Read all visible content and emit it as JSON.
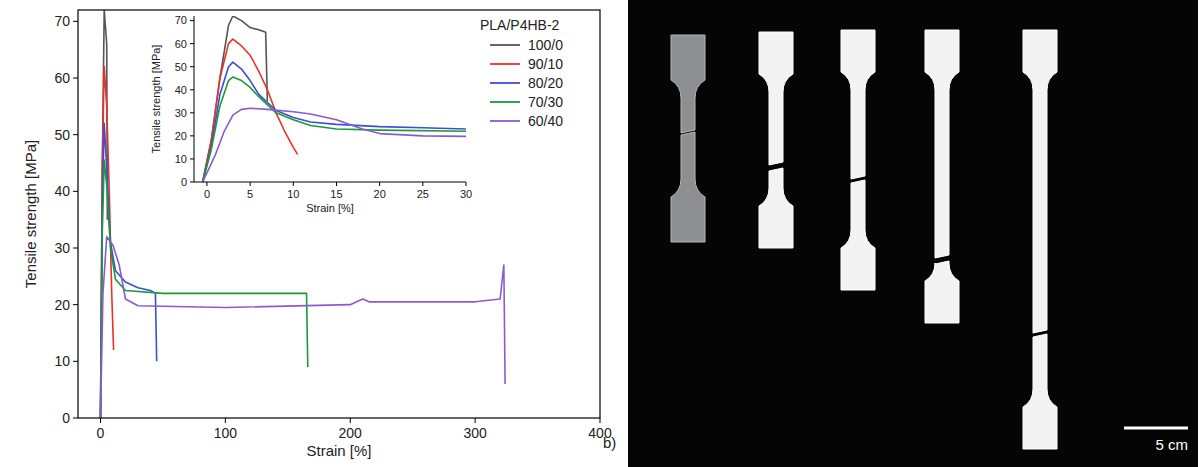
{
  "chart_data": [
    {
      "type": "line",
      "x_label": "Strain [%]",
      "y_label": "Tensile strength [MPa]",
      "legend_title": "PLA/P4HB-2",
      "legend": "upper right",
      "xlim": [
        -18,
        400
      ],
      "ylim": [
        0,
        72
      ],
      "xticks": [
        0,
        100,
        200,
        300,
        400
      ],
      "yticks": [
        0,
        10,
        20,
        30,
        40,
        50,
        60,
        70
      ],
      "series": [
        {
          "name": "100/0",
          "color": "#555555",
          "x": [
            0,
            1.5,
            3,
            4,
            5,
            5.5
          ],
          "values": [
            0,
            45,
            72,
            69,
            66,
            35
          ]
        },
        {
          "name": "90/10",
          "color": "#e8322a",
          "x": [
            0,
            1.5,
            3,
            5,
            7,
            9,
            10.5
          ],
          "values": [
            0,
            45,
            62,
            55,
            40,
            22,
            12
          ]
        },
        {
          "name": "80/20",
          "color": "#3a4fd6",
          "x": [
            0,
            1.5,
            3,
            5,
            8,
            12,
            20,
            30,
            40,
            44,
            45
          ],
          "values": [
            0,
            38,
            52,
            44,
            31,
            26,
            24,
            23,
            22.5,
            22,
            10
          ]
        },
        {
          "name": "70/30",
          "color": "#1a9a3a",
          "x": [
            0,
            1.5,
            3,
            5,
            8,
            12,
            20,
            50,
            100,
            165,
            166
          ],
          "values": [
            0,
            33,
            45.5,
            41,
            30,
            24.5,
            22.5,
            22,
            22,
            22,
            9
          ]
        },
        {
          "name": "60/40",
          "color": "#8a5bd0",
          "x": [
            0,
            2,
            5,
            10,
            15,
            20,
            30,
            100,
            200,
            210,
            215,
            250,
            300,
            320,
            323,
            324
          ],
          "values": [
            0,
            22,
            32,
            30.5,
            27,
            21,
            19.8,
            19.5,
            20,
            21,
            20.5,
            20.5,
            20.5,
            21,
            27,
            6
          ]
        }
      ]
    },
    {
      "type": "line",
      "x_label": "Strain [%]",
      "y_label": "Tensile strength [MPa]",
      "xlim": [
        -1.5,
        30
      ],
      "ylim": [
        0,
        72
      ],
      "xticks": [
        0,
        5,
        10,
        15,
        20,
        25,
        30
      ],
      "yticks": [
        0,
        10,
        20,
        30,
        40,
        50,
        60,
        70
      ],
      "series": [
        {
          "color": "#555555",
          "x": [
            -0.5,
            0.5,
            1.5,
            2.5,
            3,
            4,
            5,
            6,
            6.8,
            7
          ],
          "values": [
            0,
            18,
            45,
            68,
            72,
            70,
            67,
            66,
            65,
            35
          ]
        },
        {
          "color": "#e8322a",
          "x": [
            -0.5,
            0.5,
            1.5,
            2.5,
            3,
            4,
            5,
            6,
            7,
            8,
            9,
            10,
            10.5
          ],
          "values": [
            0,
            18,
            45,
            60,
            62,
            59,
            55,
            48,
            40,
            30,
            22,
            15,
            12
          ]
        },
        {
          "color": "#3a4fd6",
          "x": [
            -0.5,
            0.5,
            1.5,
            2.5,
            3,
            4,
            5,
            6,
            8,
            10,
            12,
            15,
            20,
            25,
            30
          ],
          "values": [
            0,
            15,
            38,
            50,
            52,
            49,
            44,
            38,
            31,
            28,
            26,
            25,
            24,
            23.5,
            23
          ]
        },
        {
          "color": "#1a9a3a",
          "x": [
            -0.5,
            0.5,
            1.5,
            2.5,
            3,
            4,
            5,
            6,
            8,
            10,
            12,
            15,
            20,
            30
          ],
          "values": [
            0,
            14,
            33,
            44,
            45.5,
            44,
            41,
            37,
            30,
            27,
            24.5,
            23,
            22.5,
            22
          ]
        },
        {
          "color": "#8a5bd0",
          "x": [
            -0.5,
            1,
            2,
            3,
            4,
            5,
            7,
            10,
            12,
            15,
            18,
            20,
            25,
            30
          ],
          "values": [
            0,
            12,
            22,
            29,
            31.5,
            32,
            31.5,
            30.5,
            29.5,
            27,
            23,
            21,
            20,
            19.8
          ]
        }
      ]
    }
  ],
  "photo": {
    "panel_label": "b)",
    "scale_bar": "5 cm"
  }
}
